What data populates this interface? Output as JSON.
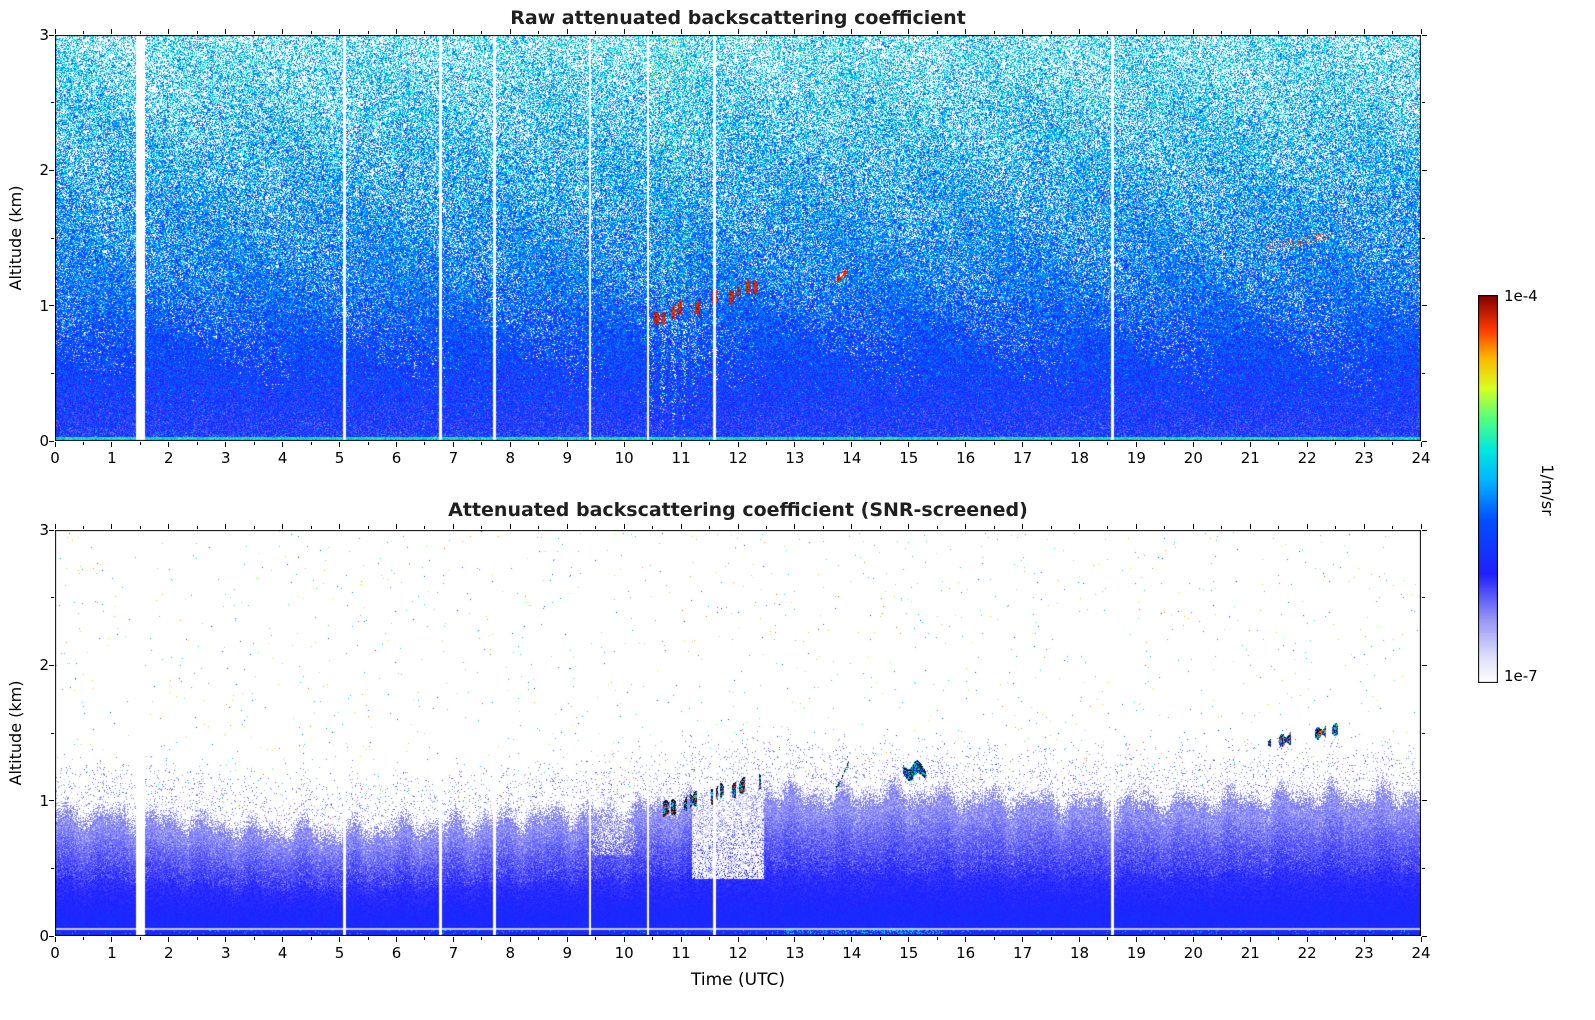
{
  "figure": {
    "top_title": "Raw attenuated backscattering coefficient",
    "bottom_title": "Attenuated backscattering coefficient (SNR-screened)",
    "x_axis_label": "Time (UTC)",
    "y_axis_label": "Altitude (km)"
  },
  "axes": {
    "x_label": "Time (UTC)",
    "y_label": "Altitude (km)",
    "x_tick_labels": [
      "0",
      "1",
      "2",
      "3",
      "4",
      "5",
      "6",
      "7",
      "8",
      "9",
      "10",
      "11",
      "12",
      "13",
      "14",
      "15",
      "16",
      "17",
      "18",
      "19",
      "20",
      "21",
      "22",
      "23",
      "24"
    ],
    "y_tick_labels": [
      "0",
      "1",
      "2",
      "3"
    ],
    "xlim": [
      0,
      24
    ],
    "ylim": [
      0,
      3
    ]
  },
  "colorbar": {
    "top_label": "1e-4",
    "bottom_label": "1e-7",
    "unit_label": "1/m/sr",
    "scale": "log10",
    "range": [
      1e-07,
      0.0001
    ],
    "stops": [
      [
        0.0,
        "#ffffff"
      ],
      [
        0.07,
        "#dcdcfa"
      ],
      [
        0.16,
        "#9898f5"
      ],
      [
        0.28,
        "#2020ff"
      ],
      [
        0.42,
        "#0050ff"
      ],
      [
        0.52,
        "#00b4ff"
      ],
      [
        0.6,
        "#00e8e0"
      ],
      [
        0.68,
        "#50ff80"
      ],
      [
        0.76,
        "#d8ff20"
      ],
      [
        0.84,
        "#ffb400"
      ],
      [
        0.91,
        "#ff3c00"
      ],
      [
        1.0,
        "#800000"
      ]
    ]
  },
  "chart_data": [
    {
      "panel": "top",
      "type": "heatmap",
      "title": "Raw attenuated backscattering coefficient",
      "xlabel": "Time (UTC)",
      "ylabel": "Altitude (km)",
      "xlim": [
        0,
        24
      ],
      "ylim": [
        0,
        3
      ],
      "value_scale": "log10",
      "value_range": [
        1e-07,
        0.0001
      ],
      "units": "1/m/sr",
      "data_gaps_utc": [
        [
          1.5,
          0.085
        ],
        [
          5.08,
          0.025
        ],
        [
          6.78,
          0.025
        ],
        [
          7.72,
          0.025
        ],
        [
          9.4,
          0.025
        ],
        [
          10.42,
          0.025
        ],
        [
          11.58,
          0.025
        ],
        [
          18.58,
          0.025
        ]
      ],
      "features": {
        "description": "Unscreened lidar quicklook: dense blue aerosol signal below ~0.9 km, speckled cyan/blue instrument noise filling the free troposphere up to 3 km, yellow-green solar-noise stripes near local noon, and a strong (~1e-4 1/m/sr, dark red) cloud/aerosol layer ascending from 0.9 km at 10.5 UTC to ~1.15 km at 12.4 UTC; weak elevated red traces near 1.2 km at ~13.8 UTC and near 1.5 km between 21.3 and 22.5 UTC; white vertical stripes are data gaps.",
        "surface_layer_top_km": 0.9,
        "solar_noise_band_utc": [
          10.25,
          12.7
        ],
        "cloud_track": {
          "t_start": 10.5,
          "t_end": 12.4,
          "alt_start_km": 0.9,
          "alt_end_km": 1.15
        },
        "midday_blob": {
          "t_start": 13.72,
          "t_end": 13.92,
          "alt_km": 1.2
        },
        "evening_track": {
          "t_start": 21.3,
          "t_end": 22.5,
          "alt_start_km": 1.42,
          "alt_end_km": 1.53
        }
      }
    },
    {
      "panel": "bottom",
      "type": "heatmap",
      "title": "Attenuated backscattering coefficient (SNR-screened)",
      "xlabel": "Time (UTC)",
      "ylabel": "Altitude (km)",
      "xlim": [
        0,
        24
      ],
      "ylim": [
        0,
        3
      ],
      "value_scale": "log10",
      "value_range": [
        1e-07,
        0.0001
      ],
      "units": "1/m/sr",
      "data_gaps_utc": [
        [
          1.5,
          0.085
        ],
        [
          5.08,
          0.025
        ],
        [
          6.78,
          0.025
        ],
        [
          7.72,
          0.025
        ],
        [
          9.4,
          0.025
        ],
        [
          10.42,
          0.025
        ],
        [
          11.58,
          0.025
        ],
        [
          18.58,
          0.025
        ]
      ],
      "boundary_layer_top_km": [
        [
          0,
          0.92
        ],
        [
          2,
          0.88
        ],
        [
          3.5,
          0.8
        ],
        [
          5,
          0.78
        ],
        [
          6.5,
          0.82
        ],
        [
          8,
          0.88
        ],
        [
          9.5,
          0.93
        ],
        [
          10.5,
          0.97
        ],
        [
          11.5,
          1.05
        ],
        [
          12.3,
          1.12
        ],
        [
          13,
          1.06
        ],
        [
          14,
          1.04
        ],
        [
          15,
          1.06
        ],
        [
          16,
          1.03
        ],
        [
          17,
          1.01
        ],
        [
          18,
          1.0
        ],
        [
          19,
          0.99
        ],
        [
          20,
          1.0
        ],
        [
          21,
          1.02
        ],
        [
          22,
          1.05
        ],
        [
          23,
          1.04
        ],
        [
          24,
          1.05
        ]
      ],
      "features": {
        "description": "SNR-screened version: solid blue boundary-layer signal from the surface to a ragged top near 0.8-1.1 km (pale fringe at low values), white noise-free sky above, cloud base track with saturated/black pixels rising from 0.9 km at 10.5 UTC to 1.15 km at 12.4 UTC with a white attenuation gap beneath it, small black/cyan cloud patches near 1.2 km at 13.8 and 15.1 UTC, broken cloud layer near 1.45-1.55 km between 21.3 and 22.5 UTC, cyan surface dashes near 0.05 km around 13-15.5 UTC; white vertical stripes are data gaps.",
        "cloud_track": {
          "t_start": 10.5,
          "t_end": 12.4,
          "alt_start_km": 0.9,
          "alt_end_km": 1.15
        },
        "virga_gap": {
          "t_start": 11.2,
          "t_end": 12.45,
          "alt_bottom_km": 0.42
        },
        "midday_blob": {
          "t_start": 13.72,
          "t_end": 13.95,
          "alt_start_km": 1.08,
          "alt_end_km": 1.28
        },
        "afternoon_blob": {
          "t_start": 14.9,
          "t_end": 15.3,
          "alt_km": 1.22
        },
        "evening_track": {
          "t_start": 21.28,
          "t_end": 22.55,
          "alt_start_km": 1.42,
          "alt_end_km": 1.53
        },
        "cyan_surface_dashes_utc": [
          12.8,
          15.6
        ]
      }
    }
  ]
}
